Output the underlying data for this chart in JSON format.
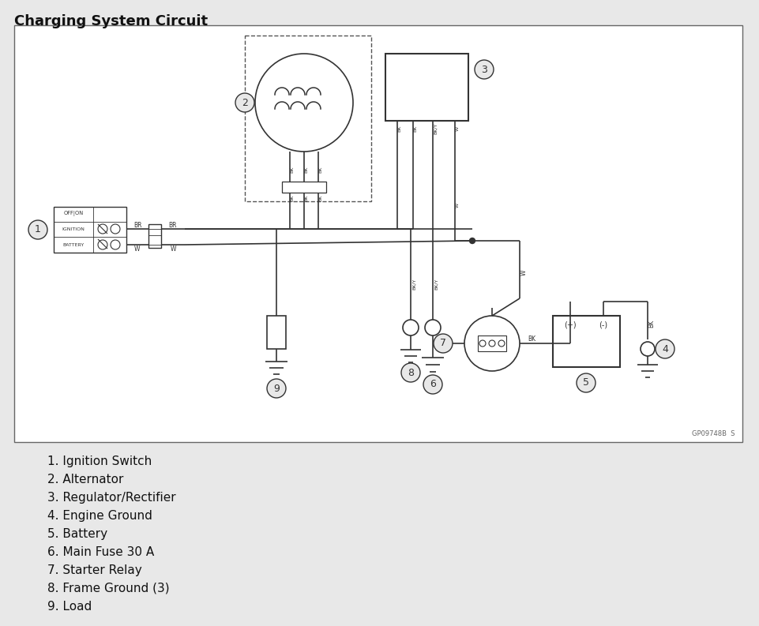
{
  "title": "Charging System Circuit",
  "bg_color": "#e8e8e8",
  "diagram_fill": "#ffffff",
  "line_color": "#333333",
  "legend_items": [
    "1. Ignition Switch",
    "2. Alternator",
    "3. Regulator/Rectifier",
    "4. Engine Ground",
    "5. Battery",
    "6. Main Fuse 30 A",
    "7. Starter Relay",
    "8. Frame Ground (3)",
    "9. Load"
  ]
}
